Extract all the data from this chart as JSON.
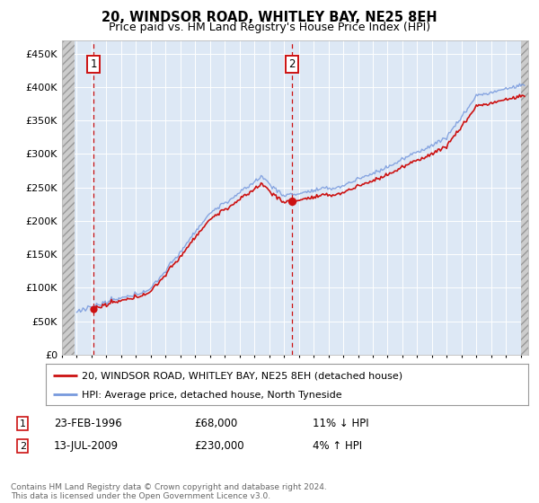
{
  "title": "20, WINDSOR ROAD, WHITLEY BAY, NE25 8EH",
  "subtitle": "Price paid vs. HM Land Registry's House Price Index (HPI)",
  "legend_line1": "20, WINDSOR ROAD, WHITLEY BAY, NE25 8EH (detached house)",
  "legend_line2": "HPI: Average price, detached house, North Tyneside",
  "footnote": "Contains HM Land Registry data © Crown copyright and database right 2024.\nThis data is licensed under the Open Government Licence v3.0.",
  "annotation1_date": "23-FEB-1996",
  "annotation1_price": "£68,000",
  "annotation1_hpi": "11% ↓ HPI",
  "annotation2_date": "13-JUL-2009",
  "annotation2_price": "£230,000",
  "annotation2_hpi": "4% ↑ HPI",
  "sale1_x": 1996.12,
  "sale1_y": 68000,
  "sale2_x": 2009.54,
  "sale2_y": 230000,
  "hpi_color": "#7799dd",
  "price_color": "#cc1111",
  "background_plot": "#dde8f5",
  "ylim": [
    0,
    470000
  ],
  "xlim_left": 1994.0,
  "xlim_right": 2025.5,
  "yticks": [
    0,
    50000,
    100000,
    150000,
    200000,
    250000,
    300000,
    350000,
    400000,
    450000
  ],
  "ytick_labels": [
    "£0",
    "£50K",
    "£100K",
    "£150K",
    "£200K",
    "£250K",
    "£300K",
    "£350K",
    "£400K",
    "£450K"
  ],
  "xticks": [
    1994,
    1995,
    1996,
    1997,
    1998,
    1999,
    2000,
    2001,
    2002,
    2003,
    2004,
    2005,
    2006,
    2007,
    2008,
    2009,
    2010,
    2011,
    2012,
    2013,
    2014,
    2015,
    2016,
    2017,
    2018,
    2019,
    2020,
    2021,
    2022,
    2023,
    2024,
    2025
  ]
}
